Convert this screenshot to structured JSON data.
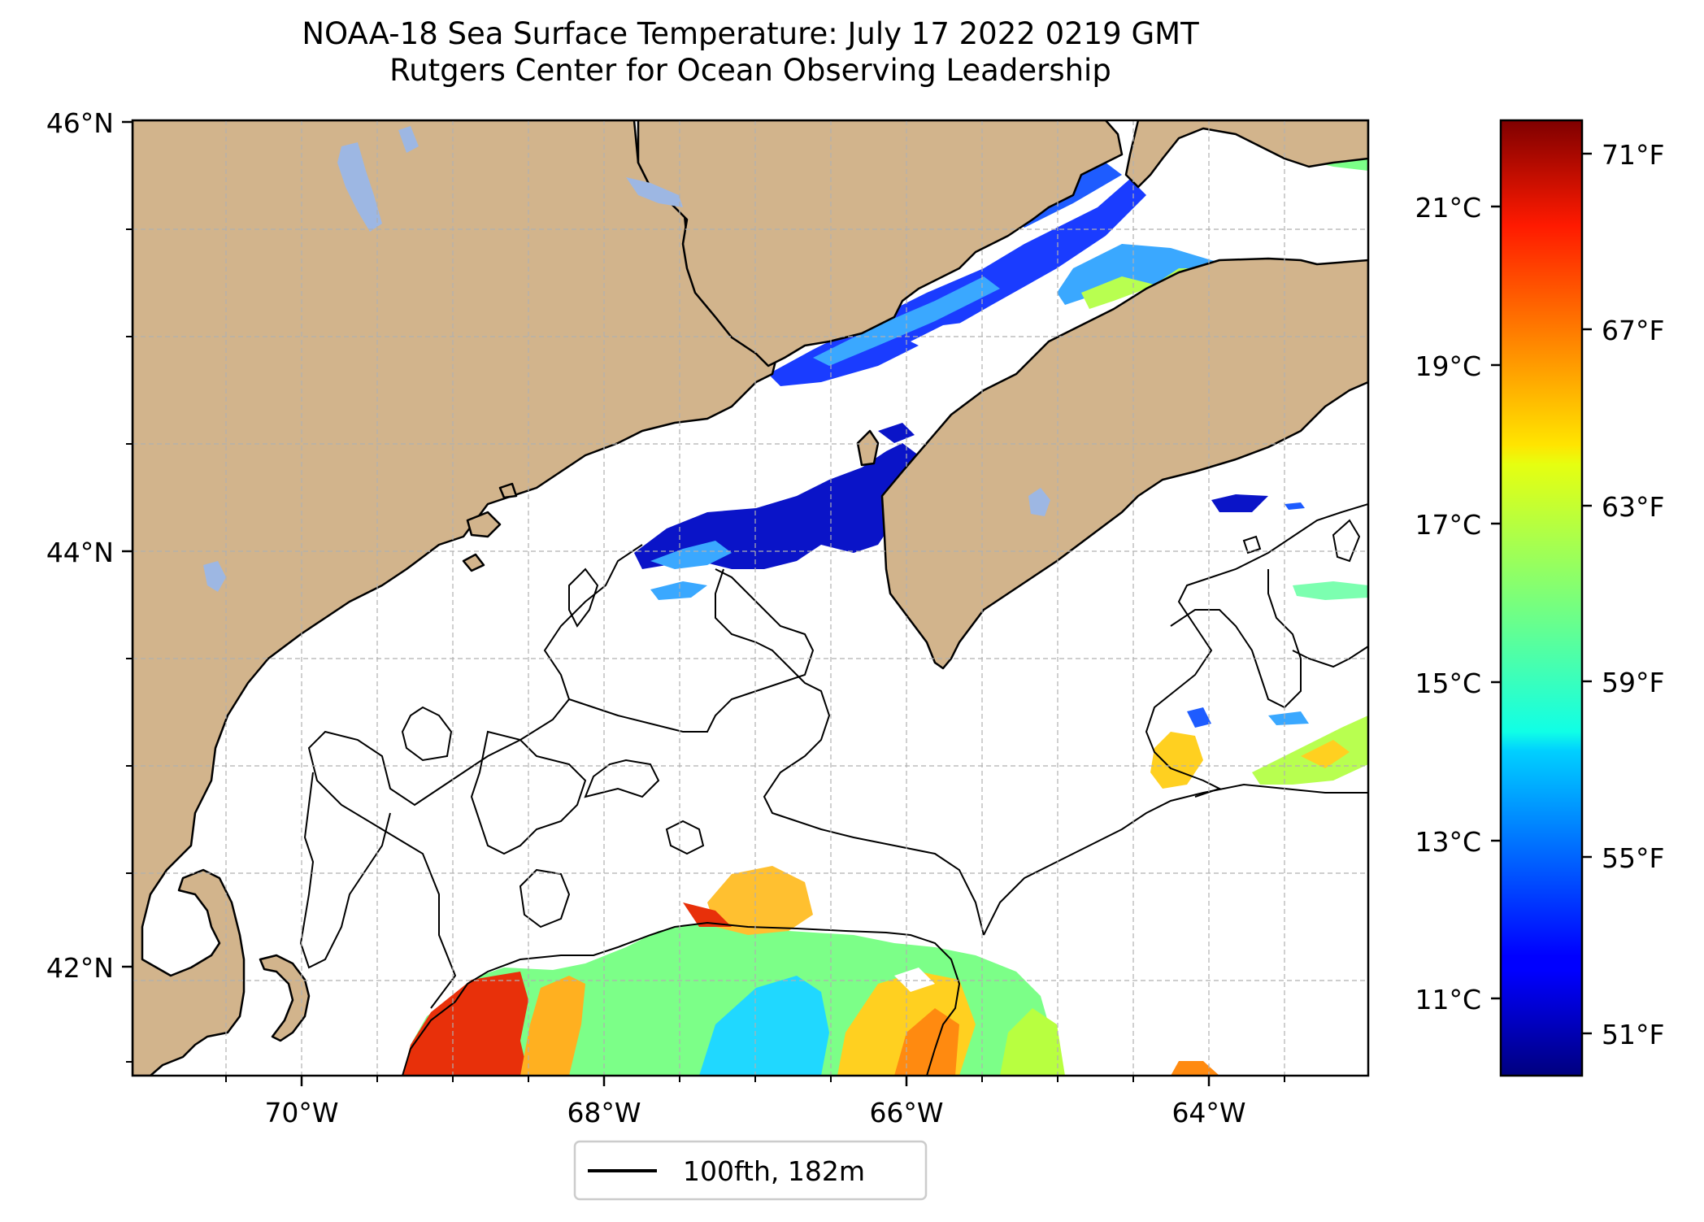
{
  "title": {
    "line1": "NOAA-18 Sea Surface Temperature: July 17 2022 0219 GMT",
    "line2": "Rutgers Center for Ocean Observing Leadership"
  },
  "map": {
    "lat_labels": [
      "46°N",
      "44°N",
      "42°N"
    ],
    "lon_labels": [
      "70°W",
      "68°W",
      "66°W",
      "64°W"
    ],
    "colors": {
      "land": "#d2b48c",
      "lakes": "#9db7e3",
      "coast": "#000000",
      "grid": "#b0b0b0",
      "no_data": "#ffffff"
    }
  },
  "legend": {
    "label": "100fth, 182m"
  },
  "colorbar": {
    "colormap": "jet",
    "celsius_ticks": [
      "21°C",
      "19°C",
      "17°C",
      "15°C",
      "13°C",
      "11°C"
    ],
    "fahrenheit_ticks": [
      "71°F",
      "67°F",
      "63°F",
      "59°F",
      "55°F",
      "51°F"
    ]
  }
}
